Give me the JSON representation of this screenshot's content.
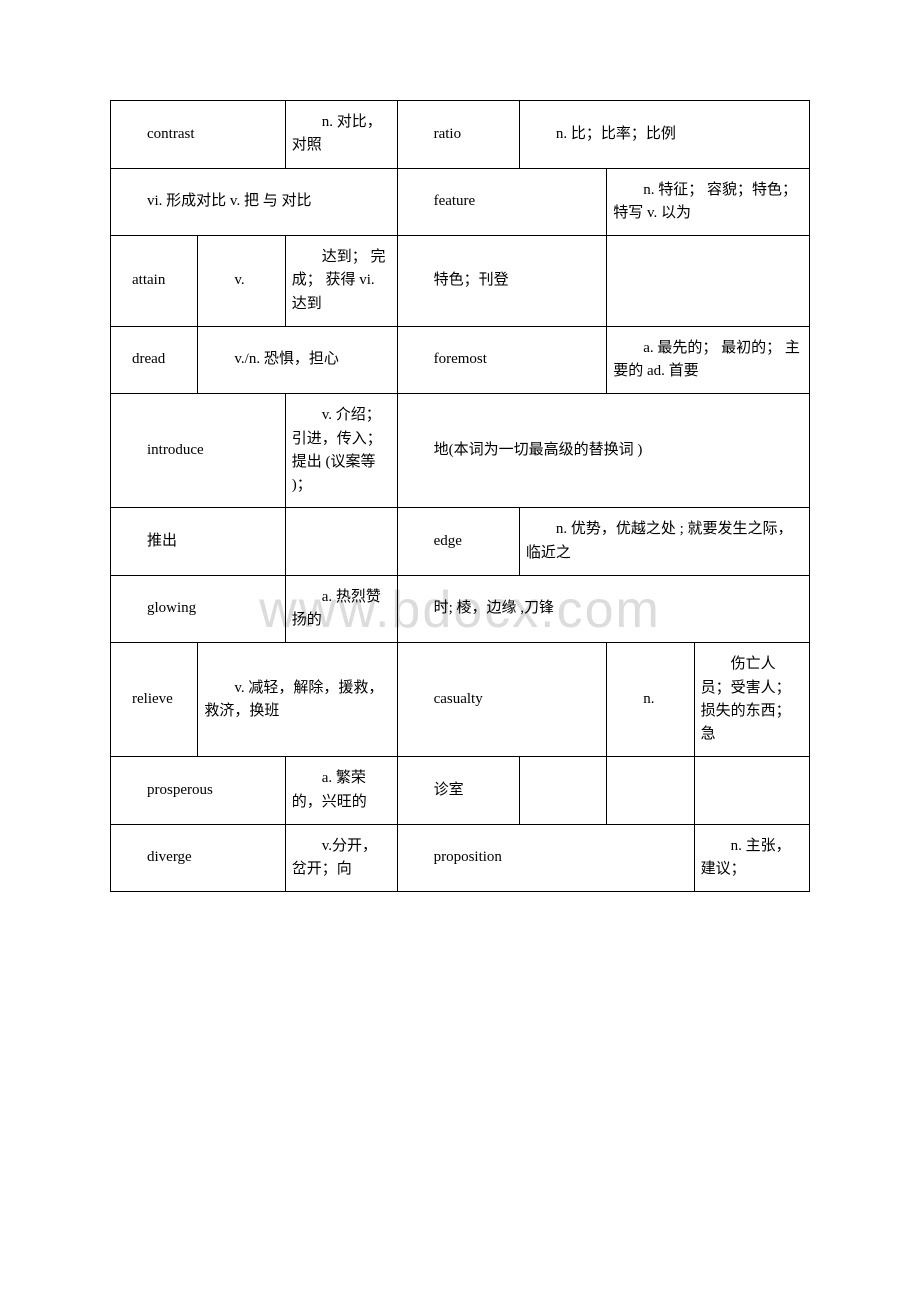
{
  "watermark": "www.bdocx.com",
  "rows": [
    {
      "cells": [
        {
          "text": "contrast",
          "colspan": 2
        },
        {
          "text": "n. 对比，对照",
          "colspan": 1
        },
        {
          "text": "ratio",
          "colspan": 2
        },
        {
          "text": "n. 比；比率；比例",
          "colspan": 3
        }
      ]
    },
    {
      "cells": [
        {
          "text": "vi. 形成对比 v. 把 与 对比",
          "colspan": 3
        },
        {
          "text": "feature",
          "colspan": 3
        },
        {
          "text": "n. 特征； 容貌；特色；特写 v. 以为",
          "colspan": 2
        }
      ]
    },
    {
      "cells": [
        {
          "text": "attain",
          "colspan": 1,
          "indent": "small"
        },
        {
          "text": "v.",
          "colspan": 1
        },
        {
          "text": "达到； 完成； 获得 vi. 达到",
          "colspan": 1
        },
        {
          "text": "特色；刊登",
          "colspan": 3
        },
        {
          "text": "",
          "colspan": 2
        }
      ]
    },
    {
      "cells": [
        {
          "text": "dread",
          "colspan": 1,
          "indent": "small"
        },
        {
          "text": "v./n. 恐惧，担心",
          "colspan": 2
        },
        {
          "text": "foremost",
          "colspan": 3
        },
        {
          "text": "a. 最先的； 最初的； 主要的 ad. 首要",
          "colspan": 2
        }
      ]
    },
    {
      "cells": [
        {
          "text": "introduce",
          "colspan": 2
        },
        {
          "text": "v. 介绍； 引进，传入； 提出 (议案等 )；",
          "colspan": 1
        },
        {
          "text": "地(本词为一切最高级的替换词 )",
          "colspan": 5
        }
      ]
    },
    {
      "cells": [
        {
          "text": "推出",
          "colspan": 2
        },
        {
          "text": "",
          "colspan": 1
        },
        {
          "text": "edge",
          "colspan": 2
        },
        {
          "text": "n. 优势，优越之处 ; 就要发生之际， 临近之",
          "colspan": 3
        }
      ]
    },
    {
      "cells": [
        {
          "text": "glowing",
          "colspan": 2
        },
        {
          "text": "a. 热烈赞扬的",
          "colspan": 1
        },
        {
          "text": "时; 棱，边缘 ,刀锋",
          "colspan": 5
        }
      ]
    },
    {
      "cells": [
        {
          "text": "relieve",
          "colspan": 1,
          "indent": "small"
        },
        {
          "text": "v. 减轻，解除，援救，救济，换班",
          "colspan": 2
        },
        {
          "text": "casualty",
          "colspan": 3
        },
        {
          "text": "n.",
          "colspan": 1
        },
        {
          "text": "伤亡人员；受害人；损失的东西；急",
          "colspan": 1
        }
      ]
    },
    {
      "cells": [
        {
          "text": "prosperous",
          "colspan": 2
        },
        {
          "text": "a. 繁荣的，兴旺的",
          "colspan": 1
        },
        {
          "text": "诊室",
          "colspan": 2
        },
        {
          "text": "",
          "colspan": 1
        },
        {
          "text": "",
          "colspan": 1
        },
        {
          "text": "",
          "colspan": 1
        }
      ]
    },
    {
      "cells": [
        {
          "text": "diverge",
          "colspan": 2
        },
        {
          "text": "v.分开，岔开；向",
          "colspan": 1
        },
        {
          "text": "proposition",
          "colspan": 4
        },
        {
          "text": "n. 主张，建议；",
          "colspan": 1
        }
      ]
    }
  ],
  "colwidths": [
    "12.5%",
    "12.5%",
    "16%",
    "12.5%",
    "5%",
    "12.5%",
    "12.5%",
    "16.5%"
  ]
}
